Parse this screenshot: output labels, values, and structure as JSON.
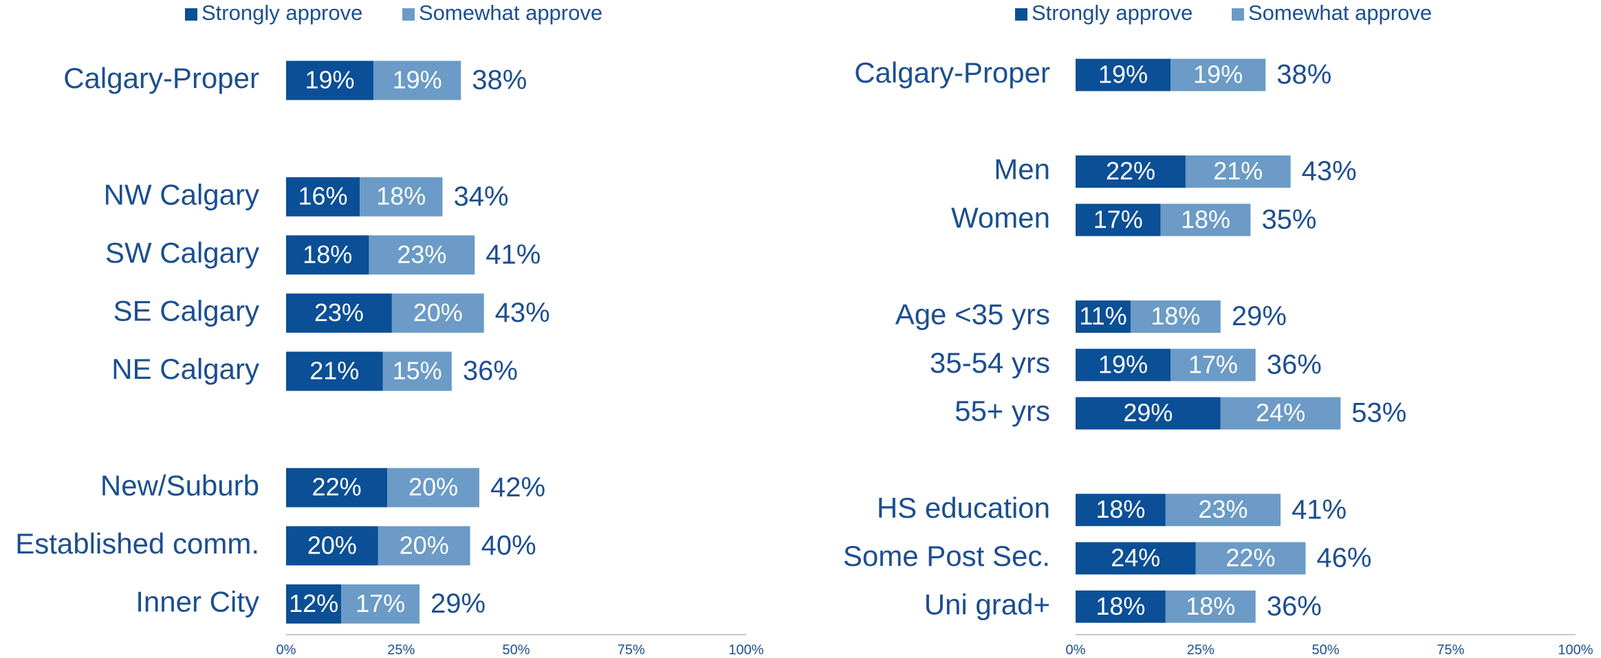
{
  "chart_data": [
    {
      "type": "bar",
      "orientation": "horizontal",
      "stacked": true,
      "legend": "top",
      "categories": [
        "Calgary-Proper",
        null,
        "NW Calgary",
        "SW Calgary",
        "SE Calgary",
        "NE Calgary",
        null,
        "New/Suburb",
        "Established comm.",
        "Inner City"
      ],
      "series": [
        {
          "name": "Strongly approve",
          "color": "#0b4f96",
          "values": [
            19,
            null,
            16,
            18,
            23,
            21,
            null,
            22,
            20,
            12
          ],
          "value_labels": [
            "19%",
            null,
            "16%",
            "18%",
            "23%",
            "21%",
            null,
            "22%",
            "20%",
            "12%"
          ]
        },
        {
          "name": "Somewhat approve",
          "color": "#6b9bc6",
          "values": [
            19,
            null,
            18,
            23,
            20,
            15,
            null,
            20,
            20,
            17
          ],
          "value_labels": [
            "19%",
            null,
            "18%",
            "23%",
            "20%",
            "15%",
            null,
            "20%",
            "20%",
            "17%"
          ]
        }
      ],
      "totals": [
        38,
        null,
        34,
        41,
        43,
        36,
        null,
        42,
        40,
        29
      ],
      "total_labels": [
        "38%",
        null,
        "34%",
        "41%",
        "43%",
        "36%",
        null,
        "42%",
        "40%",
        "29%"
      ],
      "xlim": [
        0,
        100
      ],
      "xticks": [
        {
          "value": 0,
          "label": "0%"
        },
        {
          "value": 25,
          "label": "25%"
        },
        {
          "value": 50,
          "label": "50%"
        },
        {
          "value": 75,
          "label": "75%"
        },
        {
          "value": 100,
          "label": "100%"
        }
      ]
    },
    {
      "type": "bar",
      "orientation": "horizontal",
      "stacked": true,
      "legend": "top",
      "categories": [
        "Calgary-Proper",
        null,
        "Men",
        "Women",
        null,
        "Age <35 yrs",
        "35-54 yrs",
        "55+ yrs",
        null,
        "HS education",
        "Some Post Sec.",
        "Uni grad+"
      ],
      "series": [
        {
          "name": "Strongly approve",
          "color": "#0b4f96",
          "values": [
            19,
            null,
            22,
            17,
            null,
            11,
            19,
            29,
            null,
            18,
            24,
            18
          ],
          "value_labels": [
            "19%",
            null,
            "22%",
            "17%",
            null,
            "11%",
            "19%",
            "29%",
            null,
            "18%",
            "24%",
            "18%"
          ]
        },
        {
          "name": "Somewhat approve",
          "color": "#6b9bc6",
          "values": [
            19,
            null,
            21,
            18,
            null,
            18,
            17,
            24,
            null,
            23,
            22,
            18
          ],
          "value_labels": [
            "19%",
            null,
            "21%",
            "18%",
            null,
            "18%",
            "17%",
            "24%",
            null,
            "23%",
            "22%",
            "18%"
          ]
        }
      ],
      "totals": [
        38,
        null,
        43,
        35,
        null,
        29,
        36,
        53,
        null,
        41,
        46,
        36
      ],
      "total_labels": [
        "38%",
        null,
        "43%",
        "35%",
        null,
        "29%",
        "36%",
        "53%",
        null,
        "41%",
        "46%",
        "36%"
      ],
      "xlim": [
        0,
        100
      ],
      "xticks": [
        {
          "value": 0,
          "label": "0%"
        },
        {
          "value": 25,
          "label": "25%"
        },
        {
          "value": 50,
          "label": "50%"
        },
        {
          "value": 75,
          "label": "75%"
        },
        {
          "value": 100,
          "label": "100%"
        }
      ]
    }
  ]
}
